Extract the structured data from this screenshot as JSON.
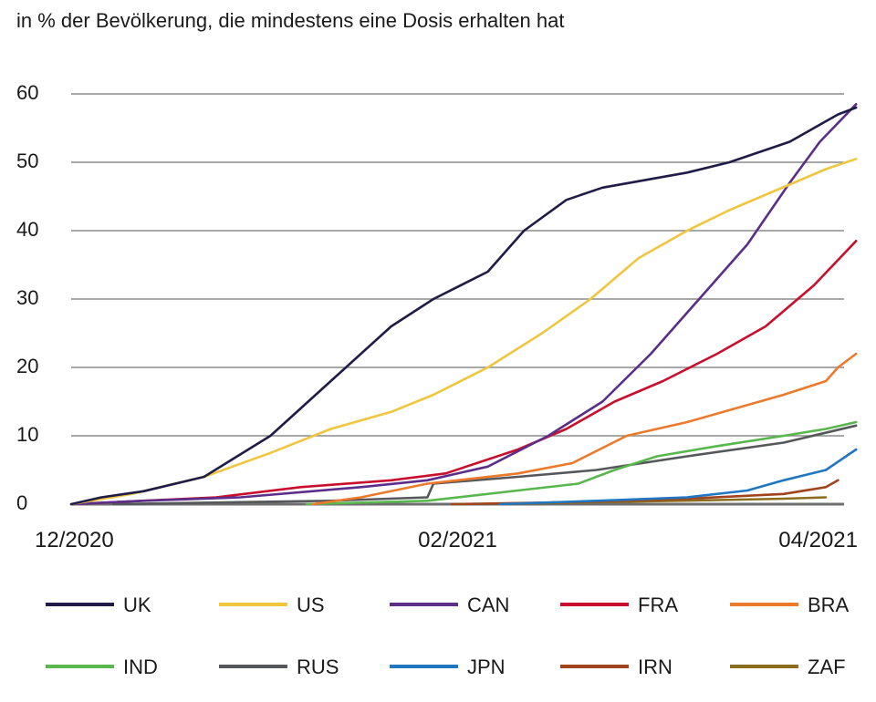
{
  "chart_data": {
    "type": "line",
    "title": "in % der Bevölkerung, die mindestens eine Dosis erhalten hat",
    "xlabel": "",
    "ylabel": "",
    "x_start": "2020-12-08",
    "x_end": "2021-04-15",
    "x_ticks": [
      {
        "date": "2020-12-08",
        "label": "12/2020"
      },
      {
        "date": "2021-02-10",
        "label": "02/2021"
      },
      {
        "date": "2021-04-15",
        "label": "04/2021"
      }
    ],
    "ylim": [
      0,
      60
    ],
    "y_ticks": [
      0,
      10,
      20,
      30,
      40,
      50,
      60
    ],
    "grid": true,
    "legend_position": "bottom",
    "series": [
      {
        "name": "UK",
        "color": "#1f1d47",
        "points": [
          [
            "2020-12-08",
            0
          ],
          [
            "2020-12-13",
            1
          ],
          [
            "2020-12-20",
            1.9
          ],
          [
            "2020-12-30",
            4
          ],
          [
            "2021-01-10",
            10
          ],
          [
            "2021-01-20",
            18
          ],
          [
            "2021-01-30",
            26
          ],
          [
            "2021-02-06",
            30
          ],
          [
            "2021-02-15",
            34
          ],
          [
            "2021-02-21",
            40
          ],
          [
            "2021-02-28",
            44.5
          ],
          [
            "2021-03-06",
            46.3
          ],
          [
            "2021-03-20",
            48.5
          ],
          [
            "2021-03-27",
            50
          ],
          [
            "2021-04-06",
            53
          ],
          [
            "2021-04-14",
            57
          ],
          [
            "2021-04-17",
            58
          ]
        ]
      },
      {
        "name": "US",
        "color": "#f0c63f",
        "points": [
          [
            "2020-12-08",
            0
          ],
          [
            "2020-12-18",
            1.5
          ],
          [
            "2020-12-30",
            4
          ],
          [
            "2021-01-10",
            7.5
          ],
          [
            "2021-01-20",
            11
          ],
          [
            "2021-01-30",
            13.5
          ],
          [
            "2021-02-06",
            16
          ],
          [
            "2021-02-15",
            20
          ],
          [
            "2021-02-24",
            25
          ],
          [
            "2021-03-04",
            30
          ],
          [
            "2021-03-12",
            36
          ],
          [
            "2021-03-20",
            40
          ],
          [
            "2021-03-27",
            43
          ],
          [
            "2021-04-04",
            46
          ],
          [
            "2021-04-12",
            49
          ],
          [
            "2021-04-17",
            50.5
          ]
        ]
      },
      {
        "name": "CAN",
        "color": "#5b2e8a",
        "points": [
          [
            "2020-12-08",
            0
          ],
          [
            "2020-12-20",
            0.5
          ],
          [
            "2021-01-05",
            1
          ],
          [
            "2021-01-25",
            2.5
          ],
          [
            "2021-02-05",
            3.5
          ],
          [
            "2021-02-15",
            5.5
          ],
          [
            "2021-02-25",
            10
          ],
          [
            "2021-03-06",
            15
          ],
          [
            "2021-03-14",
            22
          ],
          [
            "2021-03-22",
            30
          ],
          [
            "2021-03-30",
            38
          ],
          [
            "2021-04-06",
            47
          ],
          [
            "2021-04-11",
            53
          ],
          [
            "2021-04-17",
            58.5
          ]
        ]
      },
      {
        "name": "FRA",
        "color": "#c8102e",
        "points": [
          [
            "2020-12-08",
            0
          ],
          [
            "2021-01-01",
            1
          ],
          [
            "2021-01-15",
            2.5
          ],
          [
            "2021-01-30",
            3.5
          ],
          [
            "2021-02-08",
            4.5
          ],
          [
            "2021-02-20",
            8
          ],
          [
            "2021-02-28",
            11
          ],
          [
            "2021-03-08",
            15
          ],
          [
            "2021-03-16",
            18
          ],
          [
            "2021-03-25",
            22
          ],
          [
            "2021-04-02",
            26
          ],
          [
            "2021-04-10",
            32
          ],
          [
            "2021-04-17",
            38.5
          ]
        ]
      },
      {
        "name": "BRA",
        "color": "#ec7a2b",
        "points": [
          [
            "2021-01-17",
            0
          ],
          [
            "2021-01-25",
            1
          ],
          [
            "2021-02-05",
            3
          ],
          [
            "2021-02-20",
            4.5
          ],
          [
            "2021-03-01",
            6
          ],
          [
            "2021-03-10",
            10
          ],
          [
            "2021-03-20",
            12
          ],
          [
            "2021-03-30",
            14.5
          ],
          [
            "2021-04-05",
            16
          ],
          [
            "2021-04-12",
            18
          ],
          [
            "2021-04-14",
            20
          ],
          [
            "2021-04-17",
            22
          ]
        ]
      },
      {
        "name": "IND",
        "color": "#58b74d",
        "points": [
          [
            "2021-01-16",
            0
          ],
          [
            "2021-02-05",
            0.5
          ],
          [
            "2021-02-20",
            2
          ],
          [
            "2021-03-02",
            3
          ],
          [
            "2021-03-08",
            5
          ],
          [
            "2021-03-15",
            7
          ],
          [
            "2021-03-25",
            8.5
          ],
          [
            "2021-04-05",
            10
          ],
          [
            "2021-04-12",
            11
          ],
          [
            "2021-04-17",
            12
          ]
        ]
      },
      {
        "name": "RUS",
        "color": "#55585a",
        "points": [
          [
            "2020-12-15",
            0
          ],
          [
            "2021-01-20",
            0.5
          ],
          [
            "2021-02-05",
            1
          ],
          [
            "2021-02-06",
            3
          ],
          [
            "2021-02-20",
            4
          ],
          [
            "2021-03-05",
            5
          ],
          [
            "2021-03-20",
            7
          ],
          [
            "2021-04-05",
            9
          ],
          [
            "2021-04-17",
            11.5
          ]
        ]
      },
      {
        "name": "JPN",
        "color": "#1f77c2",
        "points": [
          [
            "2021-02-17",
            0
          ],
          [
            "2021-03-05",
            0.5
          ],
          [
            "2021-03-20",
            1
          ],
          [
            "2021-03-30",
            2
          ],
          [
            "2021-04-05",
            3.5
          ],
          [
            "2021-04-12",
            5
          ],
          [
            "2021-04-17",
            8
          ]
        ]
      },
      {
        "name": "IRN",
        "color": "#a0441e",
        "points": [
          [
            "2021-02-09",
            0
          ],
          [
            "2021-03-01",
            0.3
          ],
          [
            "2021-03-20",
            0.8
          ],
          [
            "2021-04-05",
            1.5
          ],
          [
            "2021-04-12",
            2.5
          ],
          [
            "2021-04-14",
            3.5
          ]
        ]
      },
      {
        "name": "ZAF",
        "color": "#8b6d1e",
        "points": [
          [
            "2021-02-17",
            0
          ],
          [
            "2021-03-05",
            0.3
          ],
          [
            "2021-03-25",
            0.6
          ],
          [
            "2021-04-05",
            0.8
          ],
          [
            "2021-04-12",
            1
          ]
        ]
      }
    ]
  }
}
